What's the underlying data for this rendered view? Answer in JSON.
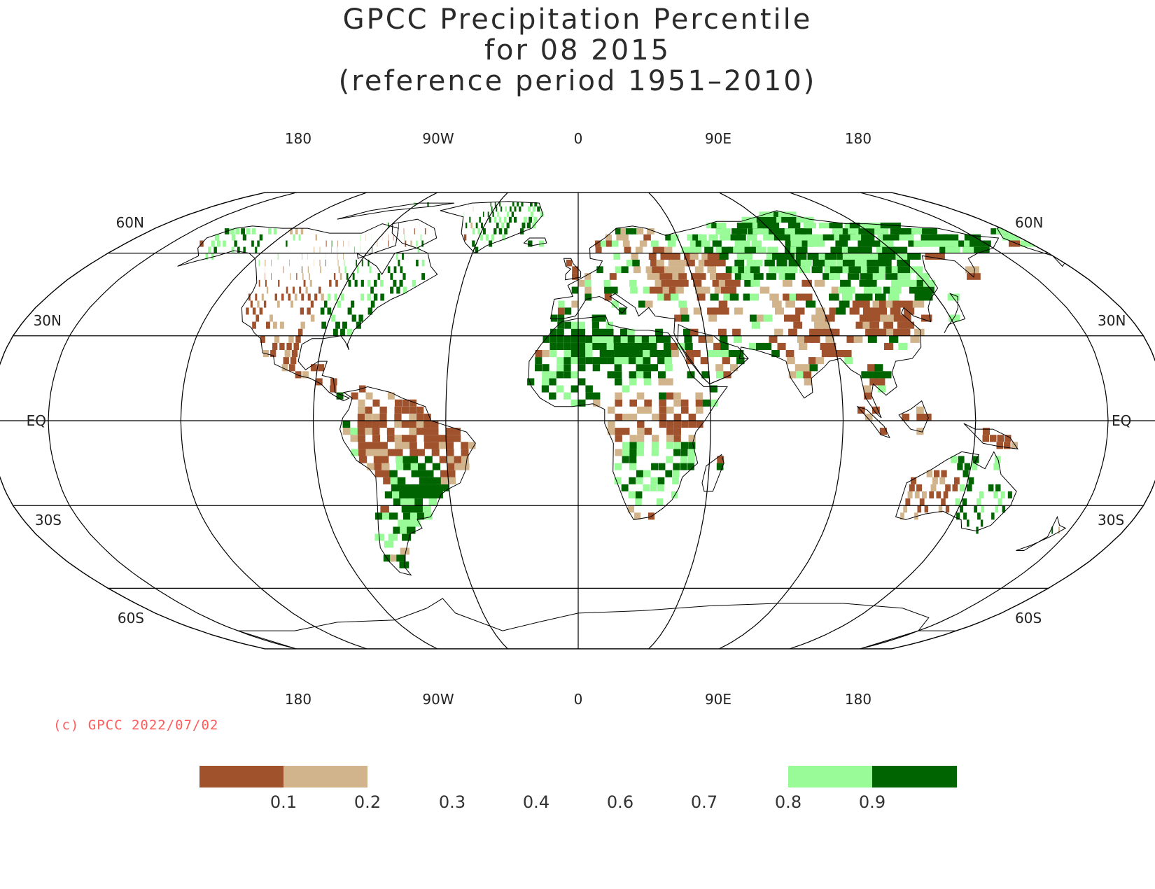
{
  "title": {
    "line1": "GPCC Precipitation Percentile",
    "line2": "for 08 2015",
    "line3": "(reference period 1951–2010)"
  },
  "map": {
    "projection": "Robinson",
    "colors": {
      "very_dry": "#a0522d",
      "dry": "#d2b48c",
      "wet": "#98fb98",
      "very_wet": "#006400"
    },
    "top_longitude_labels": [
      "180",
      "90W",
      "0",
      "90E",
      "180"
    ],
    "bottom_longitude_labels": [
      "180",
      "90W",
      "0",
      "90E",
      "180"
    ],
    "latitude_labels_left": [
      "60N",
      "30N",
      "EQ",
      "30S",
      "60S"
    ],
    "latitude_labels_right": [
      "60N",
      "30N",
      "EQ",
      "30S",
      "60S"
    ]
  },
  "copyright": "(c) GPCC 2022/07/02",
  "legend": {
    "tick_labels": [
      "0.1",
      "0.2",
      "0.3",
      "0.4",
      "0.6",
      "0.7",
      "0.8",
      "0.9"
    ],
    "bins": [
      {
        "range": "< 0.1",
        "color": "#a0522d"
      },
      {
        "range": "0.1 – 0.2",
        "color": "#d2b48c"
      },
      {
        "range": "0.2 – 0.8",
        "color": "#ffffff"
      },
      {
        "range": "0.8 – 0.9",
        "color": "#98fb98"
      },
      {
        "range": "> 0.9",
        "color": "#006400"
      }
    ]
  }
}
